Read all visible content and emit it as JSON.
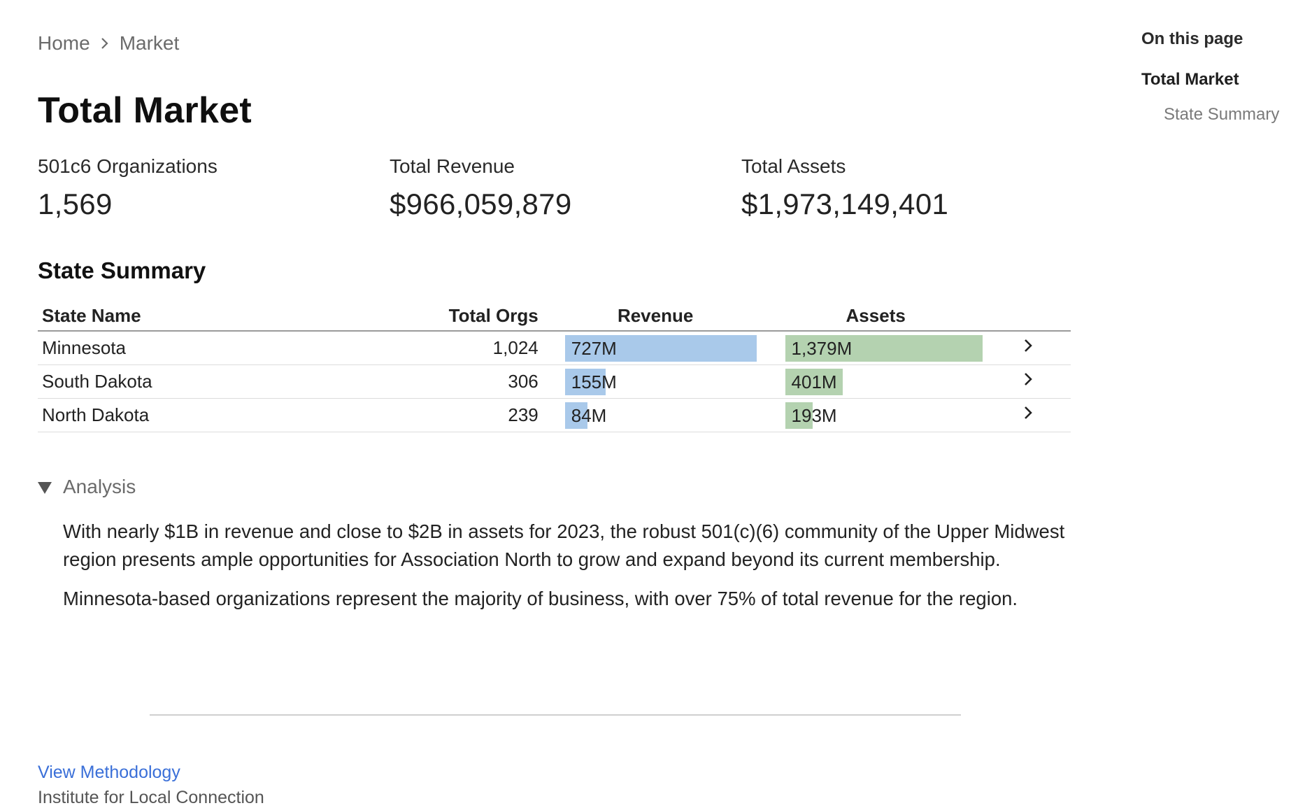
{
  "breadcrumb": {
    "home": "Home",
    "current": "Market"
  },
  "page": {
    "title": "Total Market"
  },
  "kpis": [
    {
      "label": "501c6 Organizations",
      "value": "1,569"
    },
    {
      "label": "Total Revenue",
      "value": "$966,059,879"
    },
    {
      "label": "Total Assets",
      "value": "$1,973,149,401"
    }
  ],
  "state_summary": {
    "title": "State Summary",
    "headers": {
      "state": "State Name",
      "orgs": "Total Orgs",
      "revenue": "Revenue",
      "assets": "Assets"
    },
    "revenue_max_millions": 727,
    "assets_max_millions": 1379,
    "rows": [
      {
        "state": "Minnesota",
        "orgs": "1,024",
        "revenue_label": "727M",
        "revenue_millions": 727,
        "assets_label": "1,379M",
        "assets_millions": 1379
      },
      {
        "state": "South Dakota",
        "orgs": "306",
        "revenue_label": "155M",
        "revenue_millions": 155,
        "assets_label": "401M",
        "assets_millions": 401
      },
      {
        "state": "North Dakota",
        "orgs": "239",
        "revenue_label": "84M",
        "revenue_millions": 84,
        "assets_label": "193M",
        "assets_millions": 193
      }
    ]
  },
  "analysis": {
    "summary": "Analysis",
    "paragraphs": [
      "With nearly $1B in revenue and close to $2B in assets for 2023, the robust 501(c)(6) community of the Upper Midwest region presents ample opportunities for Association North to grow and expand beyond its current membership.",
      "Minnesota-based organizations represent the majority of business, with over 75% of total revenue for the region."
    ]
  },
  "footer": {
    "methodology_link": "View Methodology",
    "cutoff_text": "Institute for Local Connection"
  },
  "toc": {
    "title": "On this page",
    "items": [
      "Total Market",
      "State Summary"
    ]
  },
  "colors": {
    "revenue_bar": "#a9c9ea",
    "assets_bar": "#b4d2b0",
    "link": "#3a6fd8"
  },
  "icons": {
    "breadcrumb_separator": "chevron-right-icon",
    "row_chevron": "chevron-right-icon",
    "analysis_toggle": "triangle-down-icon"
  }
}
